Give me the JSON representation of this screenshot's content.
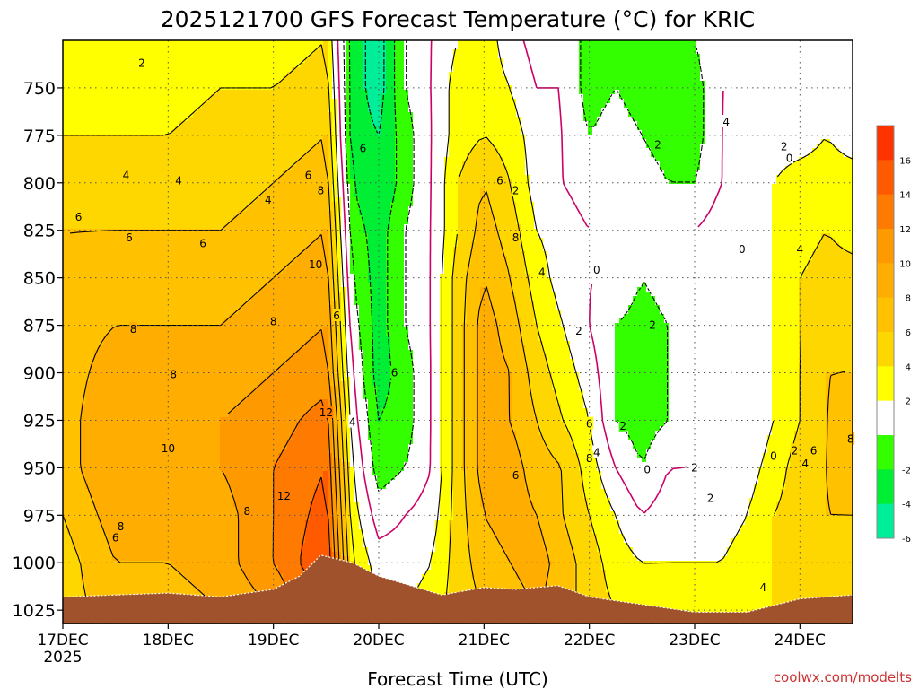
{
  "chart_data": {
    "type": "heatmap",
    "title": "2025121700 GFS Forecast Temperature (°C) for KRIC",
    "xlabel": "Forecast Time (UTC)",
    "ylabel": "",
    "credit": "coolwx.com/modelts",
    "x_ticks": [
      "17DEC",
      "18DEC",
      "19DEC",
      "20DEC",
      "21DEC",
      "22DEC",
      "23DEC",
      "24DEC"
    ],
    "x_year_label": "2025",
    "xlim_days": [
      0,
      7.5
    ],
    "y_ticks": [
      750,
      775,
      800,
      825,
      850,
      875,
      900,
      925,
      950,
      975,
      1000,
      1025
    ],
    "ylim_hpa": [
      725,
      1032
    ],
    "colorbar": {
      "ticks": [
        "16",
        "14",
        "12",
        "10",
        "8",
        "6",
        "4",
        "2",
        "-2",
        "-4",
        "-6"
      ],
      "bins": [
        {
          "min": 16,
          "max": 18,
          "color": "#ff3300"
        },
        {
          "min": 14,
          "max": 16,
          "color": "#ff5a00"
        },
        {
          "min": 12,
          "max": 14,
          "color": "#ff7a00"
        },
        {
          "min": 10,
          "max": 12,
          "color": "#ff9900"
        },
        {
          "min": 8,
          "max": 10,
          "color": "#ffad00"
        },
        {
          "min": 6,
          "max": 8,
          "color": "#ffc100"
        },
        {
          "min": 4,
          "max": 6,
          "color": "#ffd700"
        },
        {
          "min": 2,
          "max": 4,
          "color": "#ffff00"
        },
        {
          "min": -2,
          "max": 2,
          "color": "#ffffff"
        },
        {
          "min": -4,
          "max": -2,
          "color": "#33ff00"
        },
        {
          "min": -6,
          "max": -4,
          "color": "#00ee33"
        },
        {
          "min": -8,
          "max": -6,
          "color": "#00ee99"
        }
      ]
    },
    "contour_levels": [
      -6,
      -4,
      -2,
      0,
      2,
      4,
      6,
      8,
      10,
      12,
      14,
      16
    ],
    "zero_contour_color": "#cc0066",
    "terrain_color": "#a0522d",
    "surface_pressure_hpa": [
      {
        "day": 0.0,
        "p": 1018
      },
      {
        "day": 0.5,
        "p": 1017
      },
      {
        "day": 1.0,
        "p": 1016
      },
      {
        "day": 1.5,
        "p": 1018
      },
      {
        "day": 2.0,
        "p": 1014
      },
      {
        "day": 2.25,
        "p": 1007
      },
      {
        "day": 2.45,
        "p": 996
      },
      {
        "day": 2.75,
        "p": 1000
      },
      {
        "day": 3.0,
        "p": 1007
      },
      {
        "day": 3.3,
        "p": 1012
      },
      {
        "day": 3.6,
        "p": 1017
      },
      {
        "day": 4.0,
        "p": 1013
      },
      {
        "day": 4.3,
        "p": 1014
      },
      {
        "day": 4.7,
        "p": 1012
      },
      {
        "day": 5.0,
        "p": 1018
      },
      {
        "day": 5.5,
        "p": 1022
      },
      {
        "day": 6.0,
        "p": 1026
      },
      {
        "day": 6.5,
        "p": 1026
      },
      {
        "day": 7.0,
        "p": 1019
      },
      {
        "day": 7.5,
        "p": 1017
      }
    ],
    "temperature_field": {
      "days": [
        0.0,
        0.5,
        1.0,
        1.5,
        2.0,
        2.5,
        2.75,
        3.0,
        3.25,
        3.5,
        3.75,
        4.0,
        4.25,
        4.5,
        4.75,
        5.0,
        5.25,
        5.5,
        5.75,
        6.0,
        6.25,
        6.5,
        6.75,
        7.0,
        7.25,
        7.5
      ],
      "p_levels": [
        725,
        750,
        775,
        800,
        825,
        850,
        875,
        900,
        925,
        950,
        975,
        1000,
        1025
      ],
      "t": [
        [
          3,
          3,
          2,
          3,
          3,
          4,
          -5,
          -7,
          -2,
          0,
          2,
          3,
          1,
          -1,
          0,
          -3,
          -2,
          -3,
          -3,
          -2,
          0,
          0,
          0,
          1,
          0,
          0
        ],
        [
          3,
          3,
          3,
          4,
          4,
          5,
          -5,
          -7,
          -2,
          0,
          3,
          3,
          2,
          0,
          0,
          -3,
          -2,
          -3,
          -3,
          -3,
          0,
          0,
          0,
          1,
          0,
          0
        ],
        [
          4,
          4,
          4,
          5,
          5,
          6,
          -5,
          -6,
          -3,
          0,
          3,
          4,
          3,
          1,
          0,
          -2,
          -1,
          -2,
          -3,
          -3,
          0,
          1,
          1,
          1,
          2,
          1
        ],
        [
          5,
          5,
          5,
          5,
          6,
          7,
          -4,
          -6,
          -3,
          0,
          4,
          6,
          4,
          1,
          0,
          -1,
          0,
          -1,
          -2,
          -2,
          0,
          1,
          2,
          3,
          3,
          3
        ],
        [
          6,
          6,
          6,
          6,
          7,
          8,
          -3,
          -5,
          -2,
          0,
          4,
          7,
          5,
          2,
          1,
          0,
          0,
          0,
          0,
          0,
          1,
          1,
          2,
          3,
          4,
          3
        ],
        [
          6,
          7,
          7,
          7,
          8,
          9,
          -2,
          -5,
          -2,
          0,
          5,
          8,
          6,
          3,
          1,
          0,
          0,
          -2,
          -1,
          0,
          0,
          1,
          2,
          4,
          5,
          5
        ],
        [
          7,
          8,
          8,
          8,
          9,
          10,
          -1,
          -5,
          -2,
          0,
          5,
          9,
          7,
          4,
          2,
          0,
          -2,
          -3,
          -2,
          0,
          0,
          1,
          2,
          4,
          5,
          6
        ],
        [
          7,
          9,
          9,
          9,
          10,
          11,
          0,
          -5,
          -3,
          0,
          5,
          9,
          8,
          5,
          3,
          1,
          -2,
          -3,
          -2,
          0,
          0,
          0,
          2,
          4,
          6,
          6
        ],
        [
          7,
          10,
          9,
          10,
          11,
          13,
          1,
          -4,
          -3,
          0,
          5,
          9,
          8,
          6,
          4,
          2,
          -2,
          -3,
          -2,
          0,
          0,
          0,
          2,
          4,
          6,
          7
        ],
        [
          7,
          10,
          9,
          10,
          12,
          14,
          2,
          -3,
          -2,
          0,
          5,
          9,
          9,
          7,
          6,
          3,
          0,
          -2,
          0,
          0,
          0,
          1,
          3,
          5,
          6,
          7
        ],
        [
          6,
          9,
          9,
          9,
          12,
          15,
          3,
          -1,
          0,
          1,
          5,
          8,
          9,
          8,
          6,
          4,
          2,
          0,
          1,
          1,
          1,
          2,
          4,
          5,
          6,
          6
        ],
        [
          5,
          8,
          8,
          9,
          12,
          16,
          4,
          1,
          1,
          2,
          5,
          7,
          8,
          9,
          7,
          5,
          3,
          2,
          2,
          2,
          2,
          3,
          4,
          5,
          5,
          5
        ],
        [
          5,
          7,
          7,
          8,
          10,
          14,
          5,
          2,
          2,
          3,
          5,
          6,
          7,
          8,
          7,
          5,
          4,
          3,
          3,
          3,
          3,
          4,
          4,
          4,
          4,
          4
        ]
      ]
    },
    "contour_labels": [
      {
        "day": 0.75,
        "p": 737,
        "text": "2"
      },
      {
        "day": 0.6,
        "p": 796,
        "text": "4"
      },
      {
        "day": 1.1,
        "p": 799,
        "text": "4"
      },
      {
        "day": 1.95,
        "p": 809,
        "text": "4"
      },
      {
        "day": 0.15,
        "p": 818,
        "text": "6"
      },
      {
        "day": 0.63,
        "p": 829,
        "text": "6"
      },
      {
        "day": 1.33,
        "p": 832,
        "text": "6"
      },
      {
        "day": 2.33,
        "p": 796,
        "text": "6"
      },
      {
        "day": 2.45,
        "p": 804,
        "text": "8"
      },
      {
        "day": 2.4,
        "p": 843,
        "text": "10"
      },
      {
        "day": 0.67,
        "p": 877,
        "text": "8"
      },
      {
        "day": 1.05,
        "p": 901,
        "text": "8"
      },
      {
        "day": 2.0,
        "p": 873,
        "text": "8"
      },
      {
        "day": 2.6,
        "p": 870,
        "text": "6"
      },
      {
        "day": 1.0,
        "p": 940,
        "text": "10"
      },
      {
        "day": 2.5,
        "p": 921,
        "text": "12"
      },
      {
        "day": 2.1,
        "p": 965,
        "text": "12"
      },
      {
        "day": 1.75,
        "p": 973,
        "text": "8"
      },
      {
        "day": 0.55,
        "p": 981,
        "text": "8"
      },
      {
        "day": 0.5,
        "p": 987,
        "text": "6"
      },
      {
        "day": 2.75,
        "p": 926,
        "text": "4"
      },
      {
        "day": 2.85,
        "p": 782,
        "text": "6"
      },
      {
        "day": 3.15,
        "p": 900,
        "text": "6"
      },
      {
        "day": 4.15,
        "p": 799,
        "text": "6"
      },
      {
        "day": 4.3,
        "p": 804,
        "text": "2"
      },
      {
        "day": 4.3,
        "p": 829,
        "text": "8"
      },
      {
        "day": 4.55,
        "p": 847,
        "text": "4"
      },
      {
        "day": 4.9,
        "p": 878,
        "text": "2"
      },
      {
        "day": 5.07,
        "p": 846,
        "text": "0"
      },
      {
        "day": 4.3,
        "p": 954,
        "text": "6"
      },
      {
        "day": 5.0,
        "p": 927,
        "text": "6"
      },
      {
        "day": 5.07,
        "p": 942,
        "text": "4"
      },
      {
        "day": 5.32,
        "p": 928,
        "text": "2"
      },
      {
        "day": 5.0,
        "p": 945,
        "text": "8"
      },
      {
        "day": 5.55,
        "p": 951,
        "text": "0"
      },
      {
        "day": 5.6,
        "p": 875,
        "text": "2"
      },
      {
        "day": 5.65,
        "p": 780,
        "text": "2"
      },
      {
        "day": 6.3,
        "p": 768,
        "text": "4"
      },
      {
        "day": 6.0,
        "p": 950,
        "text": "2"
      },
      {
        "day": 6.15,
        "p": 966,
        "text": "2"
      },
      {
        "day": 6.45,
        "p": 835,
        "text": "0"
      },
      {
        "day": 6.85,
        "p": 781,
        "text": "2"
      },
      {
        "day": 6.9,
        "p": 787,
        "text": "0"
      },
      {
        "day": 7.0,
        "p": 835,
        "text": "4"
      },
      {
        "day": 6.75,
        "p": 944,
        "text": "0"
      },
      {
        "day": 6.95,
        "p": 941,
        "text": "2"
      },
      {
        "day": 7.13,
        "p": 941,
        "text": "6"
      },
      {
        "day": 7.48,
        "p": 935,
        "text": "8"
      },
      {
        "day": 7.05,
        "p": 948,
        "text": "4"
      },
      {
        "day": 6.65,
        "p": 1013,
        "text": "4"
      }
    ]
  }
}
